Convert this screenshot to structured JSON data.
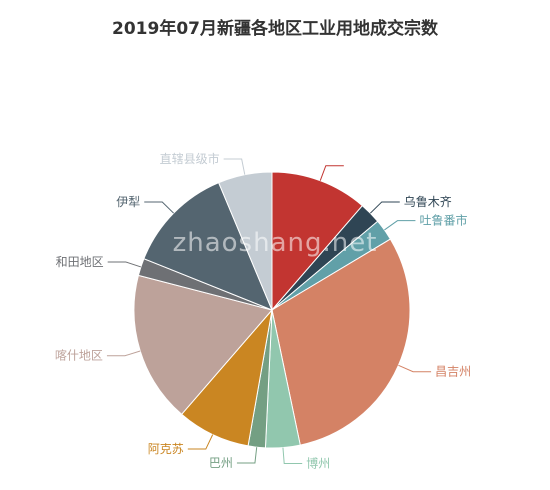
{
  "chart_data": {
    "type": "pie",
    "title": "2019年07月新疆各地区工业用地成交宗数",
    "slices": [
      {
        "name": "",
        "value": 4.5,
        "color": "#c23531"
      },
      {
        "name": "乌鲁木齐",
        "value": 1.0,
        "color": "#2f4554"
      },
      {
        "name": "吐鲁番市",
        "value": 1.0,
        "color": "#61a0a8"
      },
      {
        "name": "昌吉州",
        "value": 12.0,
        "color": "#d48265"
      },
      {
        "name": "博州",
        "value": 1.6,
        "color": "#91c7ae"
      },
      {
        "name": "巴州",
        "value": 0.8,
        "color": "#749f83"
      },
      {
        "name": "阿克苏",
        "value": 3.4,
        "color": "#ca8622"
      },
      {
        "name": "喀什地区",
        "value": 7.0,
        "color": "#bda29a"
      },
      {
        "name": "和田地区",
        "value": 0.8,
        "color": "#6e7074"
      },
      {
        "name": "伊犁",
        "value": 5.0,
        "color": "#546570"
      },
      {
        "name": "直辖县级市",
        "value": 2.5,
        "color": "#c4ccd3"
      }
    ]
  },
  "watermark": "zhaoshang.net"
}
